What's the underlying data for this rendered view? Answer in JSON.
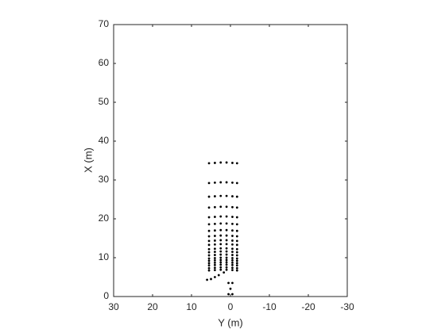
{
  "chart_data": {
    "type": "scatter",
    "xlabel": "Y (m)",
    "ylabel": "X (m)",
    "xlim": [
      30,
      -30
    ],
    "xticks": [
      30,
      20,
      10,
      0,
      -10,
      -20,
      -30
    ],
    "ylim": [
      0,
      70
    ],
    "yticks": [
      0,
      10,
      20,
      30,
      40,
      50,
      60,
      70
    ],
    "series": [
      {
        "color": "#000000",
        "x": [
          5.5,
          4,
          2.5,
          1,
          -0.5,
          -1.7,
          5.5,
          4,
          2.5,
          1,
          -0.5,
          -1.7,
          5.5,
          4,
          2.5,
          1,
          -0.5,
          -1.7,
          5.5,
          4,
          2.5,
          1,
          -0.5,
          -1.7,
          5.5,
          4,
          2.5,
          1,
          -0.5,
          -1.7,
          5.5,
          4,
          2.5,
          1,
          -0.5,
          -1.7,
          5.5,
          4,
          2.5,
          1,
          -0.5,
          -1.7,
          5.5,
          4,
          2.5,
          1,
          -0.5,
          -1.7,
          5.5,
          4,
          2.5,
          1,
          -0.5,
          -1.7,
          5.5,
          4,
          2.5,
          1,
          -0.5,
          -1.7,
          5.5,
          4,
          2.5,
          1,
          -0.5,
          -1.7,
          5.5,
          4,
          2.5,
          1,
          -0.5,
          -1.7,
          5.5,
          4,
          2.5,
          1,
          -0.5,
          -1.7,
          5.5,
          4,
          2.5,
          1,
          -0.5,
          -1.7,
          5.5,
          4,
          2.5,
          1,
          -0.5,
          -1.7,
          5.5,
          4,
          2.5,
          1,
          -0.5,
          -1.7,
          5.5,
          4,
          2.5,
          1,
          -0.5,
          -1.7,
          5.5,
          4,
          2.5,
          1,
          -0.5,
          -1.7,
          5.5,
          4,
          2.5,
          1,
          -0.5,
          -1.7,
          6,
          5,
          4,
          3,
          1.7,
          0.5,
          -0.5,
          0,
          0.5,
          -0.5
        ],
        "y": [
          34.3,
          34.4,
          34.5,
          34.5,
          34.4,
          34.3,
          29.2,
          29.3,
          29.4,
          29.4,
          29.3,
          29.2,
          25.7,
          25.8,
          25.9,
          25.9,
          25.8,
          25.7,
          22.9,
          23,
          23.1,
          23.1,
          23,
          22.9,
          20.4,
          20.5,
          20.6,
          20.6,
          20.5,
          20.4,
          18.6,
          18.7,
          18.8,
          18.8,
          18.7,
          18.6,
          16.9,
          17,
          17.1,
          17.1,
          17,
          16.9,
          15.5,
          15.6,
          15.7,
          15.7,
          15.6,
          15.5,
          14.3,
          14.4,
          14.5,
          14.5,
          14.4,
          14.3,
          13.3,
          13.4,
          13.5,
          13.5,
          13.4,
          13.3,
          12.2,
          12.3,
          12.4,
          12.4,
          12.3,
          12.2,
          11.4,
          11.5,
          11.6,
          11.6,
          11.5,
          11.4,
          10.6,
          10.7,
          10.8,
          10.8,
          10.7,
          10.6,
          9.8,
          9.9,
          10,
          10,
          9.9,
          9.8,
          9.2,
          9.3,
          9.4,
          9.4,
          9.3,
          9.2,
          8.6,
          8.7,
          8.8,
          8.8,
          8.7,
          8.6,
          8,
          8.1,
          8.2,
          8.2,
          8.1,
          8,
          7.3,
          7.4,
          7.5,
          7.5,
          7.4,
          7.3,
          6.7,
          6.8,
          6.9,
          6.9,
          6.8,
          6.7,
          4.3,
          4.5,
          5,
          5.5,
          6.2,
          3.5,
          3.5,
          2,
          0.6,
          0.6
        ]
      }
    ]
  }
}
